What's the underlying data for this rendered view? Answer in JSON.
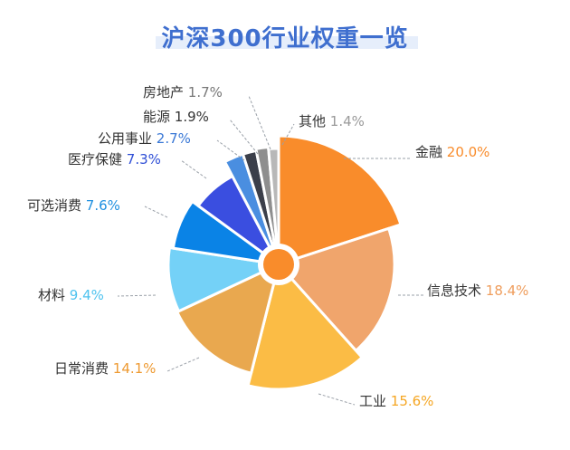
{
  "chart_data": {
    "type": "pie",
    "title": "沪深300行业权重一览",
    "unit": "%",
    "slices": [
      {
        "label": "金融",
        "value": 20.0,
        "display": "20.0%",
        "color": "#f98c2b",
        "valueColor": "#f98c2b"
      },
      {
        "label": "信息技术",
        "value": 18.4,
        "display": "18.4%",
        "color": "#f0a56c",
        "valueColor": "#ef9d5c"
      },
      {
        "label": "工业",
        "value": 15.6,
        "display": "15.6%",
        "color": "#fbbc45",
        "valueColor": "#f5a623"
      },
      {
        "label": "日常消费",
        "value": 14.1,
        "display": "14.1%",
        "color": "#e9a84f",
        "valueColor": "#ee9a32"
      },
      {
        "label": "材料",
        "value": 9.4,
        "display": "9.4%",
        "color": "#74d1f7",
        "valueColor": "#4fc3ef"
      },
      {
        "label": "可选消费",
        "value": 7.6,
        "display": "7.6%",
        "color": "#0a83e6",
        "valueColor": "#1d8fe0"
      },
      {
        "label": "医疗保健",
        "value": 7.3,
        "display": "7.3%",
        "color": "#3a4ee0",
        "valueColor": "#2f4fd6"
      },
      {
        "label": "公用事业",
        "value": 2.7,
        "display": "2.7%",
        "color": "#4a8ee0",
        "valueColor": "#3a78d6"
      },
      {
        "label": "能源",
        "value": 1.9,
        "display": "1.9%",
        "color": "#3b3f4a",
        "valueColor": "#333333"
      },
      {
        "label": "房地产",
        "value": 1.7,
        "display": "1.7%",
        "color": "#8e8e8e",
        "valueColor": "#777777"
      },
      {
        "label": "其他",
        "value": 1.4,
        "display": "1.4%",
        "color": "#b8b8b8",
        "valueColor": "#9a9a9a"
      }
    ],
    "centerColor": "#f98c2b"
  }
}
